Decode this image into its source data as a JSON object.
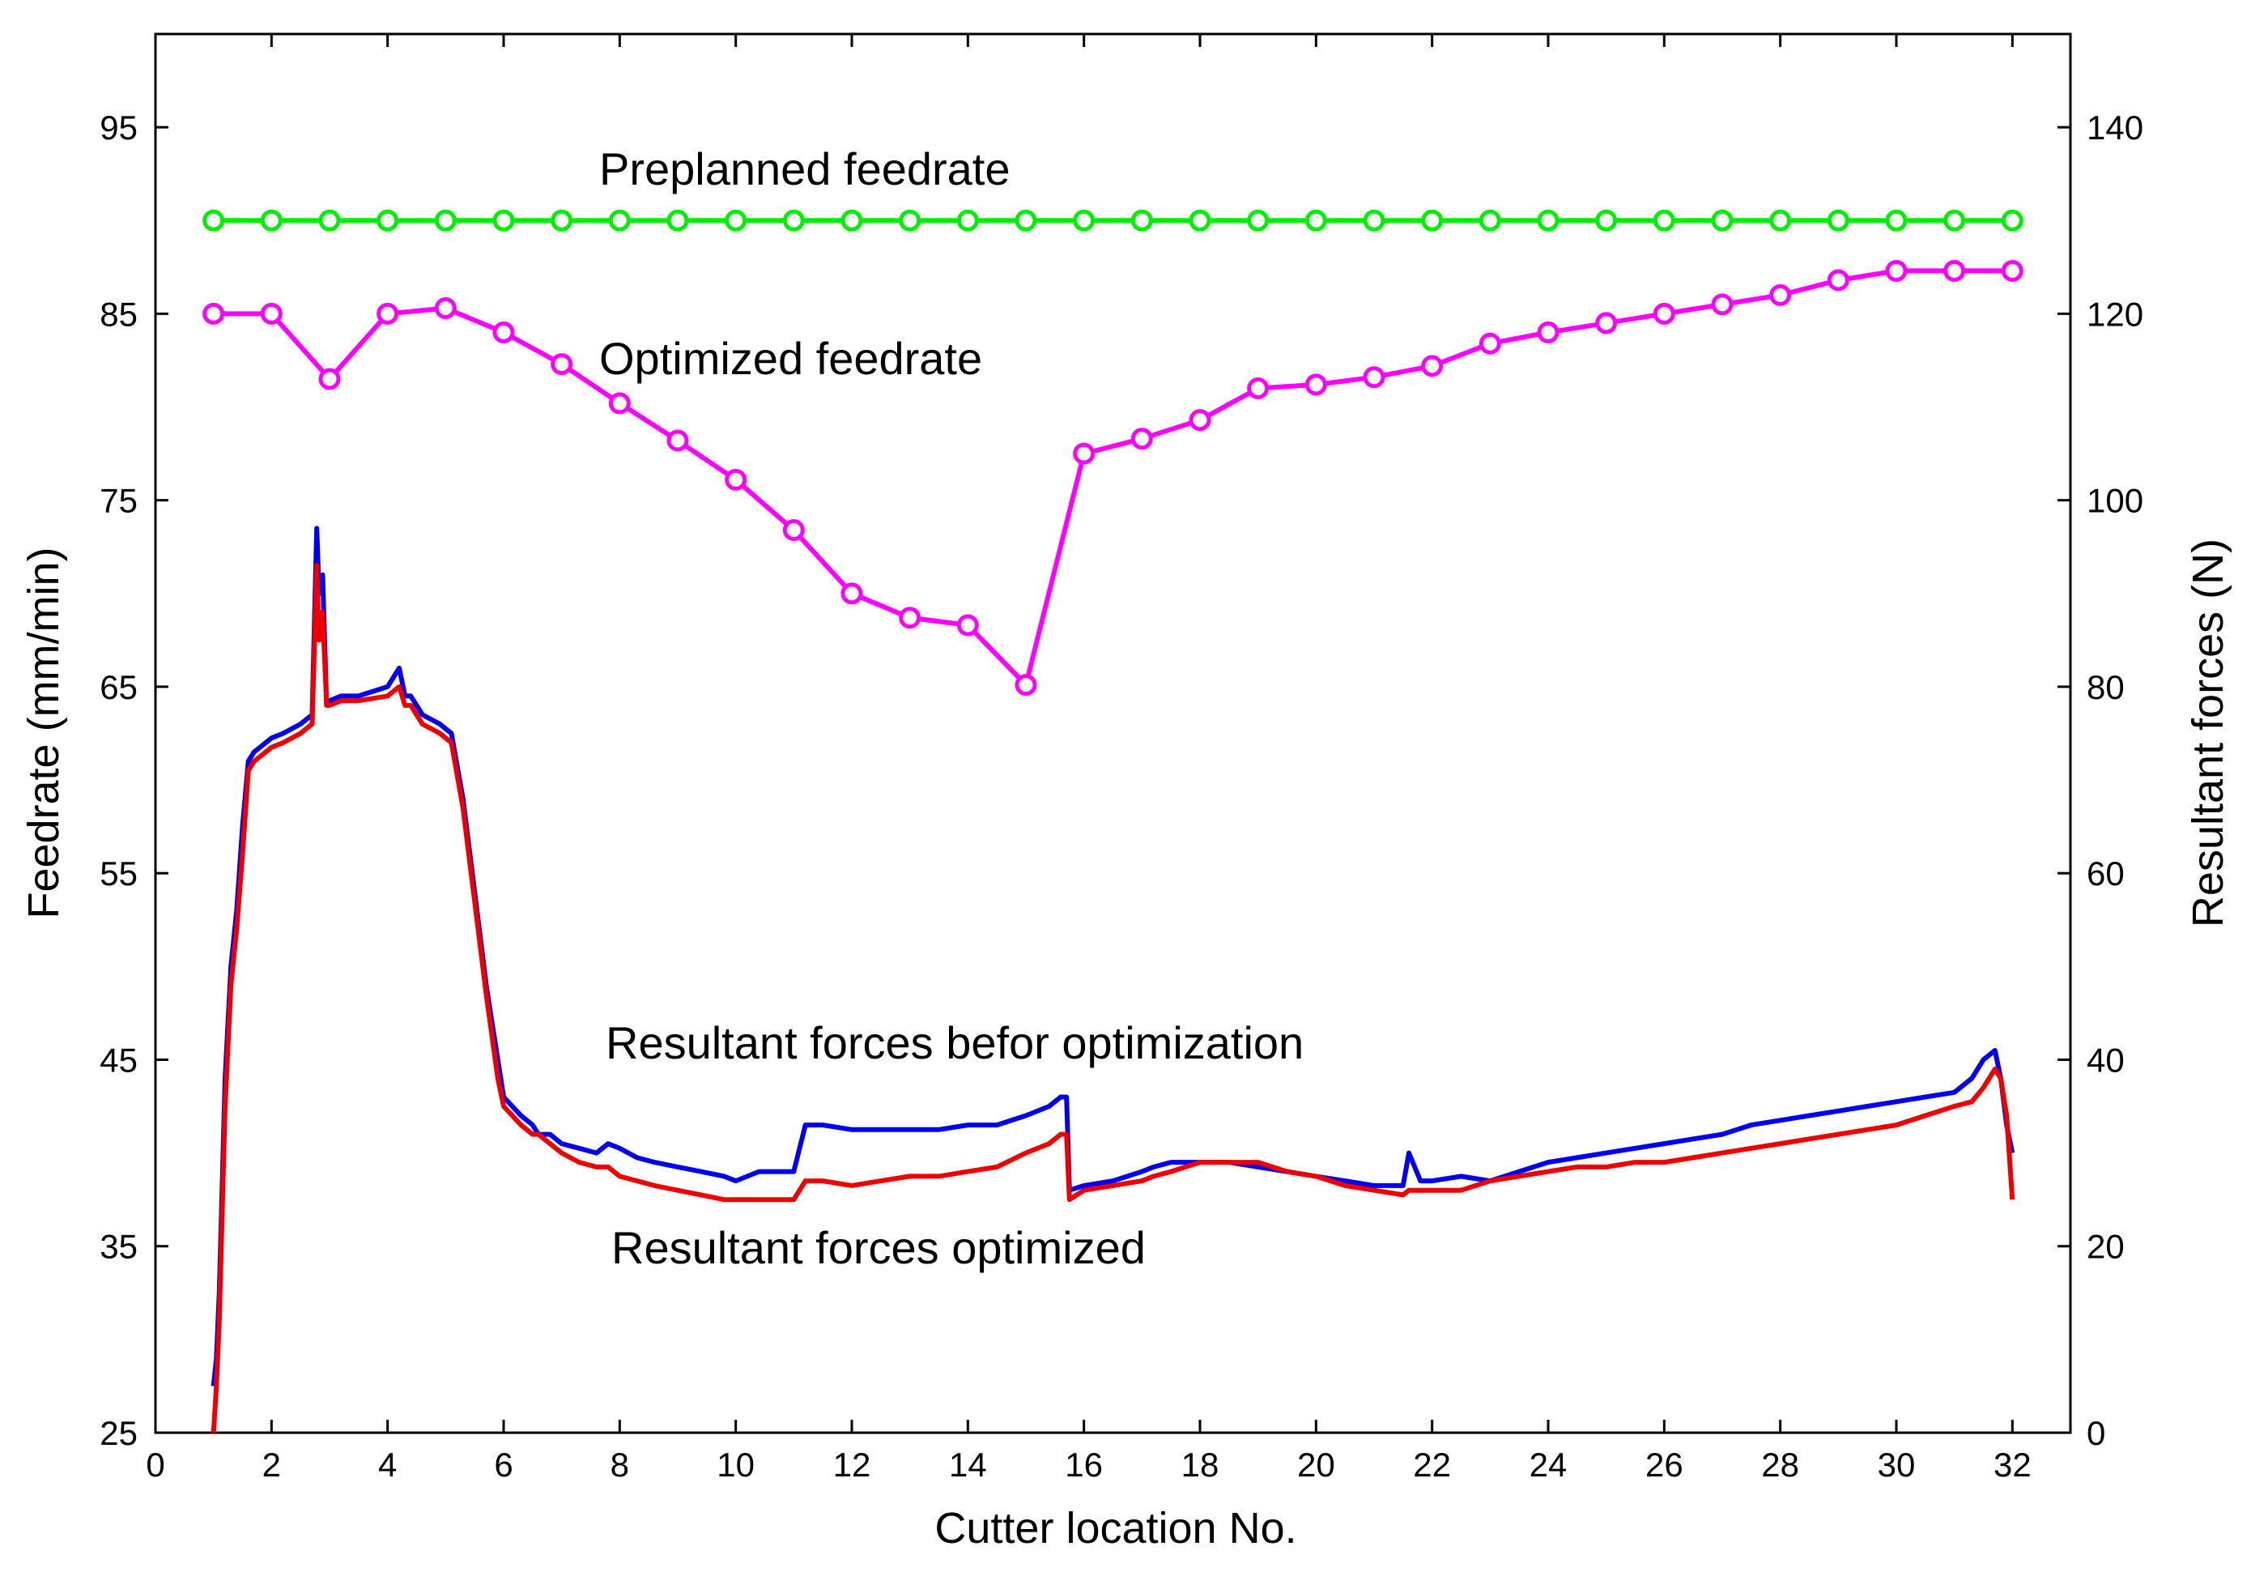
{
  "chart_data": {
    "type": "line",
    "title": "",
    "xlabel": "Cutter location No.",
    "ylabel_left": "Feedrate  (mm/min)",
    "ylabel_right": "Resultant forces  (N)",
    "xlim": [
      0,
      33
    ],
    "ylim_left": [
      25,
      100
    ],
    "ylim_right": [
      0,
      150
    ],
    "x_ticks": [
      "0",
      "2",
      "4",
      "6",
      "8",
      "10",
      "12",
      "14",
      "16",
      "18",
      "20",
      "22",
      "24",
      "26",
      "28",
      "30",
      "32"
    ],
    "y_left_ticks": [
      "25",
      "35",
      "45",
      "55",
      "65",
      "75",
      "85",
      "95"
    ],
    "y_right_ticks": [
      "0",
      "20",
      "40",
      "60",
      "80",
      "100",
      "120",
      "140"
    ],
    "grid": false,
    "series": [
      {
        "name": "Preplanned feedrate",
        "axis": "left",
        "color": "#00ee00",
        "marker": "circle",
        "x": [
          1,
          2,
          3,
          4,
          5,
          6,
          7,
          8,
          9,
          10,
          11,
          12,
          13,
          14,
          15,
          16,
          17,
          18,
          19,
          20,
          21,
          22,
          23,
          24,
          25,
          26,
          27,
          28,
          29,
          30,
          31,
          32
        ],
        "y": [
          90,
          90,
          90,
          90,
          90,
          90,
          90,
          90,
          90,
          90,
          90,
          90,
          90,
          90,
          90,
          90,
          90,
          90,
          90,
          90,
          90,
          90,
          90,
          90,
          90,
          90,
          90,
          90,
          90,
          90,
          90,
          90
        ]
      },
      {
        "name": "Optimized feedrate",
        "axis": "left",
        "color": "#ff00ff",
        "marker": "circle",
        "x": [
          1,
          2,
          3,
          4,
          5,
          6,
          7,
          8,
          9,
          10,
          11,
          12,
          13,
          14,
          15,
          16,
          17,
          18,
          19,
          20,
          21,
          22,
          23,
          24,
          25,
          26,
          27,
          28,
          29,
          30,
          31,
          32
        ],
        "y": [
          85,
          85,
          81.5,
          85,
          85.3,
          84,
          82.3,
          80.2,
          78.2,
          76.1,
          73.4,
          70,
          68.7,
          68.3,
          65.1,
          77.5,
          78.3,
          79.3,
          81,
          81.2,
          81.6,
          82.2,
          83.4,
          84,
          84.5,
          85,
          85.5,
          86,
          86.8,
          87.3,
          87.3,
          87.3
        ]
      },
      {
        "name": "Resultant forces befor optimization",
        "axis": "right",
        "color": "#0000ee",
        "marker": "none",
        "x": [
          1,
          1.05,
          1.1,
          1.2,
          1.3,
          1.4,
          1.5,
          1.6,
          1.7,
          1.8,
          1.9,
          2,
          2.2,
          2.5,
          2.7,
          2.78,
          2.82,
          2.88,
          2.95,
          3,
          3.2,
          3.5,
          4,
          4.2,
          4.3,
          4.4,
          4.6,
          4.9,
          5.1,
          5.3,
          5.5,
          5.7,
          5.9,
          6,
          6.3,
          6.5,
          6.6,
          6.8,
          7,
          7.3,
          7.6,
          7.8,
          8,
          8.3,
          8.6,
          9,
          9.4,
          9.8,
          10,
          10.4,
          10.8,
          11,
          11.2,
          11.5,
          12,
          12.5,
          13,
          13.5,
          14,
          14.5,
          15,
          15.4,
          15.6,
          15.7,
          15.75,
          16,
          16.5,
          17,
          17.2,
          17.5,
          18,
          18.5,
          19,
          19.5,
          20,
          20.5,
          21,
          21.5,
          21.6,
          21.8,
          22,
          22.5,
          23,
          23.5,
          24,
          24.5,
          25,
          25.5,
          26,
          26.5,
          27,
          27.5,
          28,
          28.5,
          29,
          29.5,
          30,
          30.5,
          31,
          31.3,
          31.5,
          31.7,
          31.8,
          31.9,
          32
        ],
        "y": [
          5,
          8,
          15,
          38,
          50,
          56,
          65,
          72,
          73,
          73.5,
          74,
          74.5,
          75,
          76,
          77,
          97,
          90,
          92,
          78,
          78.5,
          79,
          79,
          80,
          82,
          79,
          79,
          77,
          76,
          75,
          68,
          58,
          48,
          40,
          36,
          34,
          33,
          32,
          32,
          31,
          30.5,
          30,
          31,
          30.5,
          29.5,
          29,
          28.5,
          28,
          27.5,
          27,
          28,
          28,
          28,
          33,
          33,
          32.5,
          32.5,
          32.5,
          32.5,
          33,
          33,
          34,
          35,
          36,
          36,
          26,
          26.5,
          27,
          28,
          28.5,
          29,
          29,
          29,
          28.5,
          28,
          27.5,
          27,
          26.5,
          26.5,
          30,
          27,
          27,
          27.5,
          27,
          28,
          29,
          29.5,
          30,
          30.5,
          31,
          31.5,
          32,
          33,
          33.5,
          34,
          34.5,
          35,
          35.5,
          36,
          36.5,
          38,
          40,
          41,
          38,
          33,
          30
        ]
      },
      {
        "name": "Resultant forces optimized",
        "axis": "right",
        "color": "#ee0000",
        "marker": "none",
        "x": [
          1,
          1.05,
          1.1,
          1.2,
          1.3,
          1.4,
          1.5,
          1.6,
          1.7,
          1.8,
          1.9,
          2,
          2.2,
          2.5,
          2.7,
          2.78,
          2.82,
          2.88,
          2.95,
          3,
          3.2,
          3.5,
          4,
          4.2,
          4.3,
          4.4,
          4.6,
          4.9,
          5.1,
          5.3,
          5.5,
          5.7,
          5.9,
          6,
          6.3,
          6.5,
          6.6,
          6.8,
          7,
          7.3,
          7.6,
          7.8,
          8,
          8.3,
          8.6,
          9,
          9.4,
          9.8,
          10,
          10.4,
          10.8,
          11,
          11.2,
          11.5,
          12,
          12.5,
          13,
          13.5,
          14,
          14.5,
          15,
          15.4,
          15.6,
          15.7,
          15.75,
          16,
          16.5,
          17,
          17.2,
          17.5,
          18,
          18.5,
          19,
          19.5,
          20,
          20.5,
          21,
          21.5,
          21.6,
          21.8,
          22,
          22.5,
          23,
          23.5,
          24,
          24.5,
          25,
          25.5,
          26,
          26.5,
          27,
          27.5,
          28,
          28.5,
          29,
          29.5,
          30,
          30.5,
          31,
          31.3,
          31.5,
          31.7,
          31.8,
          31.9,
          32
        ],
        "y": [
          0,
          5,
          12,
          35,
          48,
          54,
          62,
          71,
          72,
          72.5,
          73,
          73.5,
          74,
          75,
          76,
          93,
          85,
          88,
          78,
          78,
          78.5,
          78.5,
          79,
          80,
          78,
          78,
          76,
          75,
          74,
          67,
          57,
          47,
          38,
          35,
          33,
          32,
          32,
          31,
          30,
          29,
          28.5,
          28.5,
          27.5,
          27,
          26.5,
          26,
          25.5,
          25,
          25,
          25,
          25,
          25,
          27,
          27,
          26.5,
          27,
          27.5,
          27.5,
          28,
          28.5,
          30,
          31,
          32,
          32,
          25,
          26,
          26.5,
          27,
          27.5,
          28,
          29,
          29,
          29,
          28,
          27.5,
          26.5,
          26,
          25.5,
          26,
          26,
          26,
          26,
          27,
          27.5,
          28,
          28.5,
          28.5,
          29,
          29,
          29.5,
          30,
          30.5,
          31,
          31.5,
          32,
          32.5,
          33,
          34,
          35,
          35.5,
          37,
          39,
          38,
          34,
          25
        ]
      }
    ],
    "annotations": [
      "Preplanned feedrate",
      "Optimized feedrate",
      "Resultant forces befor optimization",
      "Resultant forces optimized"
    ]
  }
}
